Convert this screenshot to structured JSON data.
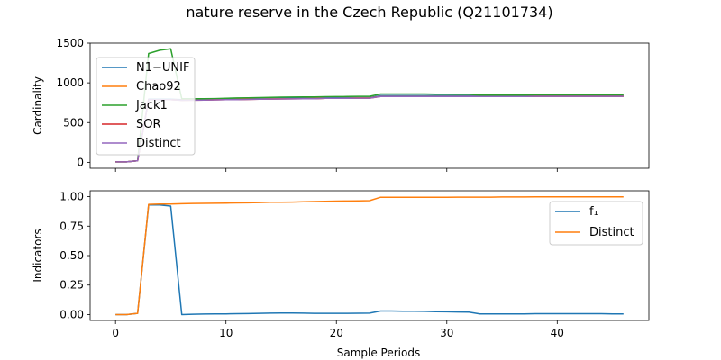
{
  "title": "nature reserve in the Czech Republic (Q21101734)",
  "chart_data": [
    {
      "type": "line",
      "ylabel": "Cardinality",
      "xlabel": "",
      "xlim": [
        -2.3,
        48.3
      ],
      "ylim": [
        -75,
        1500
      ],
      "xticks": [
        0,
        10,
        20,
        30,
        40
      ],
      "show_xticklabels": false,
      "yticks": [
        0,
        500,
        1000,
        1500
      ],
      "grid": false,
      "legend_placement": "upper left",
      "x": [
        0,
        1,
        2,
        3,
        4,
        5,
        6,
        7,
        8,
        9,
        10,
        11,
        12,
        13,
        14,
        15,
        16,
        17,
        18,
        19,
        20,
        21,
        22,
        23,
        24,
        25,
        26,
        27,
        28,
        29,
        30,
        31,
        32,
        33,
        34,
        35,
        36,
        37,
        38,
        39,
        40,
        41,
        42,
        43,
        44,
        45,
        46
      ],
      "series": [
        {
          "name": "N1−UNIF",
          "color": "#1f77b4",
          "values": [
            5,
            5,
            20,
            795,
            795,
            795,
            790,
            792,
            794,
            796,
            798,
            800,
            802,
            803,
            804,
            805,
            806,
            807,
            808,
            812,
            813,
            814,
            815,
            815,
            838,
            838,
            838,
            838,
            838,
            838,
            838,
            838,
            838,
            838,
            838,
            838,
            838,
            838,
            840,
            840,
            840,
            840,
            840,
            840,
            840,
            840,
            840
          ]
        },
        {
          "name": "Chao92",
          "color": "#ff7f0e",
          "values": [
            5,
            5,
            20,
            790,
            790,
            790,
            782,
            784,
            786,
            788,
            790,
            792,
            794,
            796,
            798,
            800,
            801,
            802,
            803,
            806,
            807,
            808,
            810,
            810,
            830,
            830,
            830,
            830,
            830,
            830,
            830,
            830,
            830,
            830,
            830,
            830,
            830,
            830,
            832,
            832,
            832,
            832,
            832,
            832,
            832,
            832,
            832
          ]
        },
        {
          "name": "Jack1",
          "color": "#2ca02c",
          "values": [
            5,
            5,
            20,
            1370,
            1410,
            1430,
            800,
            800,
            800,
            802,
            806,
            810,
            812,
            815,
            818,
            820,
            821,
            822,
            822,
            826,
            827,
            828,
            830,
            830,
            860,
            860,
            860,
            860,
            860,
            858,
            856,
            855,
            855,
            845,
            845,
            845,
            845,
            845,
            848,
            848,
            848,
            848,
            848,
            848,
            848,
            848,
            848
          ]
        },
        {
          "name": "SOR",
          "color": "#d62728",
          "values": [
            5,
            5,
            20,
            790,
            790,
            790,
            780,
            782,
            784,
            786,
            788,
            790,
            792,
            794,
            796,
            798,
            799,
            800,
            801,
            805,
            806,
            807,
            808,
            808,
            828,
            828,
            828,
            828,
            828,
            828,
            828,
            828,
            828,
            828,
            828,
            828,
            828,
            828,
            830,
            830,
            830,
            830,
            830,
            830,
            830,
            830,
            830
          ]
        },
        {
          "name": "Distinct",
          "color": "#9467bd",
          "values": [
            5,
            5,
            20,
            790,
            790,
            790,
            780,
            782,
            784,
            786,
            788,
            790,
            792,
            794,
            796,
            798,
            799,
            800,
            801,
            805,
            806,
            807,
            808,
            808,
            828,
            828,
            828,
            828,
            828,
            828,
            828,
            828,
            828,
            828,
            828,
            828,
            828,
            828,
            830,
            830,
            830,
            830,
            830,
            830,
            830,
            830,
            830
          ]
        }
      ]
    },
    {
      "type": "line",
      "ylabel": "Indicators",
      "xlabel": "Sample Periods",
      "xlim": [
        -2.3,
        48.3
      ],
      "ylim": [
        -0.05,
        1.05
      ],
      "xticks": [
        0,
        10,
        20,
        30,
        40
      ],
      "show_xticklabels": true,
      "yticks": [
        0.0,
        0.25,
        0.5,
        0.75,
        1.0
      ],
      "ytick_labels": [
        "0.00",
        "0.25",
        "0.50",
        "0.75",
        "1.00"
      ],
      "grid": false,
      "legend_placement": "upper right",
      "x": [
        0,
        1,
        2,
        3,
        4,
        5,
        6,
        7,
        8,
        9,
        10,
        11,
        12,
        13,
        14,
        15,
        16,
        17,
        18,
        19,
        20,
        21,
        22,
        23,
        24,
        25,
        26,
        27,
        28,
        29,
        30,
        31,
        32,
        33,
        34,
        35,
        36,
        37,
        38,
        39,
        40,
        41,
        42,
        43,
        44,
        45,
        46
      ],
      "series": [
        {
          "name": "f₁",
          "color": "#1f77b4",
          "values": [
            0.0,
            0.0,
            0.01,
            0.93,
            0.93,
            0.92,
            0.0,
            0.003,
            0.004,
            0.005,
            0.006,
            0.007,
            0.008,
            0.01,
            0.012,
            0.013,
            0.013,
            0.012,
            0.01,
            0.01,
            0.01,
            0.01,
            0.011,
            0.012,
            0.03,
            0.03,
            0.029,
            0.028,
            0.027,
            0.025,
            0.023,
            0.022,
            0.02,
            0.005,
            0.005,
            0.005,
            0.005,
            0.006,
            0.007,
            0.007,
            0.007,
            0.007,
            0.007,
            0.007,
            0.007,
            0.006,
            0.006
          ]
        },
        {
          "name": "Distinct",
          "color": "#ff7f0e",
          "values": [
            0.0,
            0.0,
            0.01,
            0.935,
            0.937,
            0.938,
            0.94,
            0.942,
            0.943,
            0.944,
            0.945,
            0.947,
            0.948,
            0.95,
            0.952,
            0.953,
            0.954,
            0.956,
            0.958,
            0.96,
            0.962,
            0.963,
            0.964,
            0.966,
            0.995,
            0.995,
            0.995,
            0.995,
            0.995,
            0.995,
            0.995,
            0.996,
            0.996,
            0.996,
            0.996,
            0.997,
            0.997,
            0.997,
            0.998,
            0.998,
            0.998,
            0.998,
            0.998,
            0.998,
            0.998,
            0.998,
            0.998
          ]
        }
      ]
    }
  ]
}
